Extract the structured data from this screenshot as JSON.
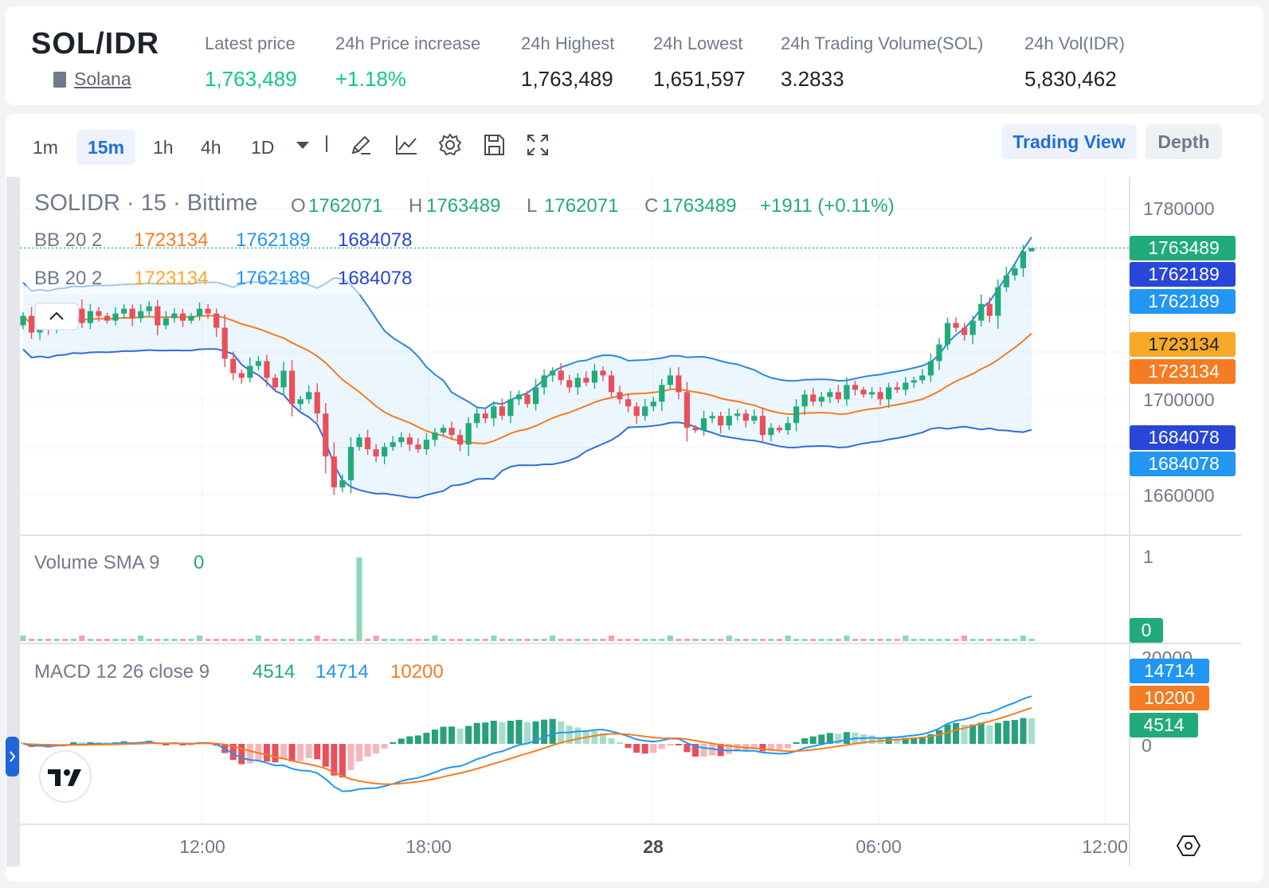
{
  "header": {
    "pair": "SOL/IDR",
    "coin_name": "Solana",
    "stats": [
      {
        "label": "Latest price",
        "value": "1,763,489",
        "color": "#0ecb81"
      },
      {
        "label": "24h Price increase",
        "value": "+1.18%",
        "color": "#0ecb81"
      },
      {
        "label": "24h Highest",
        "value": "1,763,489",
        "color": "#1e2329"
      },
      {
        "label": "24h Lowest",
        "value": "1,651,597",
        "color": "#1e2329"
      },
      {
        "label": "24h Trading Volume(SOL)",
        "value": "3.2833",
        "color": "#1e2329"
      },
      {
        "label": "24h Vol(IDR)",
        "value": "5,830,462",
        "color": "#1e2329"
      }
    ]
  },
  "toolbar": {
    "timeframes": [
      "1m",
      "15m",
      "1h",
      "4h",
      "1D"
    ],
    "active_timeframe": "15m",
    "tools": [
      "dropdown-arrow-icon",
      "pencil-icon",
      "line-chart-icon",
      "gear-icon",
      "save-icon",
      "fullscreen-icon"
    ],
    "trading_view_label": "Trading View",
    "depth_label": "Depth"
  },
  "legend": {
    "symbol": "SOLIDR · 15 · Bittime",
    "ohlc": {
      "o_label": "O",
      "o": "1762071",
      "h_label": "H",
      "h": "1763489",
      "l_label": "L",
      "l": "1762071",
      "c_label": "C",
      "c": "1763489",
      "change": "+1911 (+0.11%)"
    },
    "bb1": {
      "name": "BB 20 2",
      "basis": "1723134",
      "upper": "1762189",
      "lower": "1684078"
    },
    "bb2": {
      "name": "BB 20 2",
      "basis": "1723134",
      "upper": "1762189",
      "lower": "1684078"
    },
    "volume": {
      "name": "Volume SMA 9",
      "value": "0"
    },
    "macd": {
      "name": "MACD 12 26 close 9",
      "hist": "4514",
      "macd": "14714",
      "signal": "10200"
    }
  },
  "axis": {
    "price_ticks": [
      "1780000",
      "1700000",
      "1660000"
    ],
    "price_tags": [
      {
        "text": "1763489",
        "color": "#22ab7a"
      },
      {
        "text": "1762189",
        "color": "#2846d8"
      },
      {
        "text": "1762189",
        "color": "#2196f3"
      },
      {
        "text": "1723134",
        "color": "#f7a928"
      },
      {
        "text": "1723134",
        "color": "#f57c22"
      },
      {
        "text": "1684078",
        "color": "#2846d8"
      },
      {
        "text": "1684078",
        "color": "#2196f3"
      }
    ],
    "volume_ticks": [
      "1"
    ],
    "volume_tag": {
      "text": "0",
      "color": "#22ab7a"
    },
    "macd_ticks": [
      "20000",
      "0"
    ],
    "macd_tags": [
      {
        "text": "14714",
        "color": "#2196f3"
      },
      {
        "text": "10200",
        "color": "#f57c22"
      },
      {
        "text": "4514",
        "color": "#22ab7a"
      }
    ],
    "time_ticks": [
      "12:00",
      "18:00",
      "28",
      "06:00",
      "12:00"
    ]
  },
  "chart_data": {
    "type": "candlestick",
    "symbol": "SOLIDR",
    "interval": "15",
    "ylim": [
      1645000,
      1785000
    ],
    "x_labels": [
      "12:00",
      "18:00",
      "28",
      "06:00",
      "12:00"
    ],
    "close_series_sampled": [
      1735000,
      1728000,
      1733000,
      1730000,
      1736000,
      1734000,
      1738000,
      1732000,
      1737000,
      1735000,
      1733000,
      1736000,
      1738000,
      1734000,
      1737000,
      1739000,
      1731000,
      1734000,
      1736000,
      1733000,
      1735000,
      1738000,
      1736000,
      1730000,
      1717000,
      1711000,
      1709000,
      1714000,
      1716000,
      1709000,
      1705000,
      1712000,
      1698000,
      1700000,
      1703000,
      1694000,
      1676000,
      1663000,
      1666000,
      1680000,
      1684000,
      1679000,
      1676000,
      1680000,
      1682000,
      1684000,
      1681000,
      1679000,
      1683000,
      1686000,
      1688000,
      1685000,
      1681000,
      1690000,
      1694000,
      1692000,
      1697000,
      1693000,
      1700000,
      1702000,
      1698000,
      1705000,
      1710000,
      1712000,
      1708000,
      1705000,
      1709000,
      1707000,
      1712000,
      1710000,
      1703000,
      1700000,
      1697000,
      1693000,
      1697000,
      1699000,
      1706000,
      1710000,
      1703000,
      1688000,
      1687000,
      1692000,
      1693000,
      1689000,
      1693000,
      1694000,
      1691000,
      1693000,
      1685000,
      1688000,
      1687000,
      1690000,
      1697000,
      1702000,
      1699000,
      1701000,
      1703000,
      1700000,
      1706000,
      1704000,
      1702000,
      1703000,
      1700000,
      1705000,
      1704000,
      1707000,
      1708000,
      1710000,
      1716000,
      1723000,
      1732000,
      1730000,
      1727000,
      1733000,
      1740000,
      1735000,
      1747000,
      1752000,
      1755000,
      1762071,
      1763489
    ],
    "bollinger": {
      "period": 20,
      "mult": 2,
      "basis": 1723134,
      "upper": 1762189,
      "lower": 1684078
    },
    "volume_sma": {
      "period": 9,
      "value": 0
    },
    "macd": {
      "fast": 12,
      "slow": 26,
      "signal_period": 9,
      "macd": 14714,
      "signal": 10200,
      "histogram": 4514
    },
    "last": {
      "open": 1762071,
      "high": 1763489,
      "low": 1762071,
      "close": 1763489,
      "change": 1911,
      "change_pct": 0.11
    }
  }
}
